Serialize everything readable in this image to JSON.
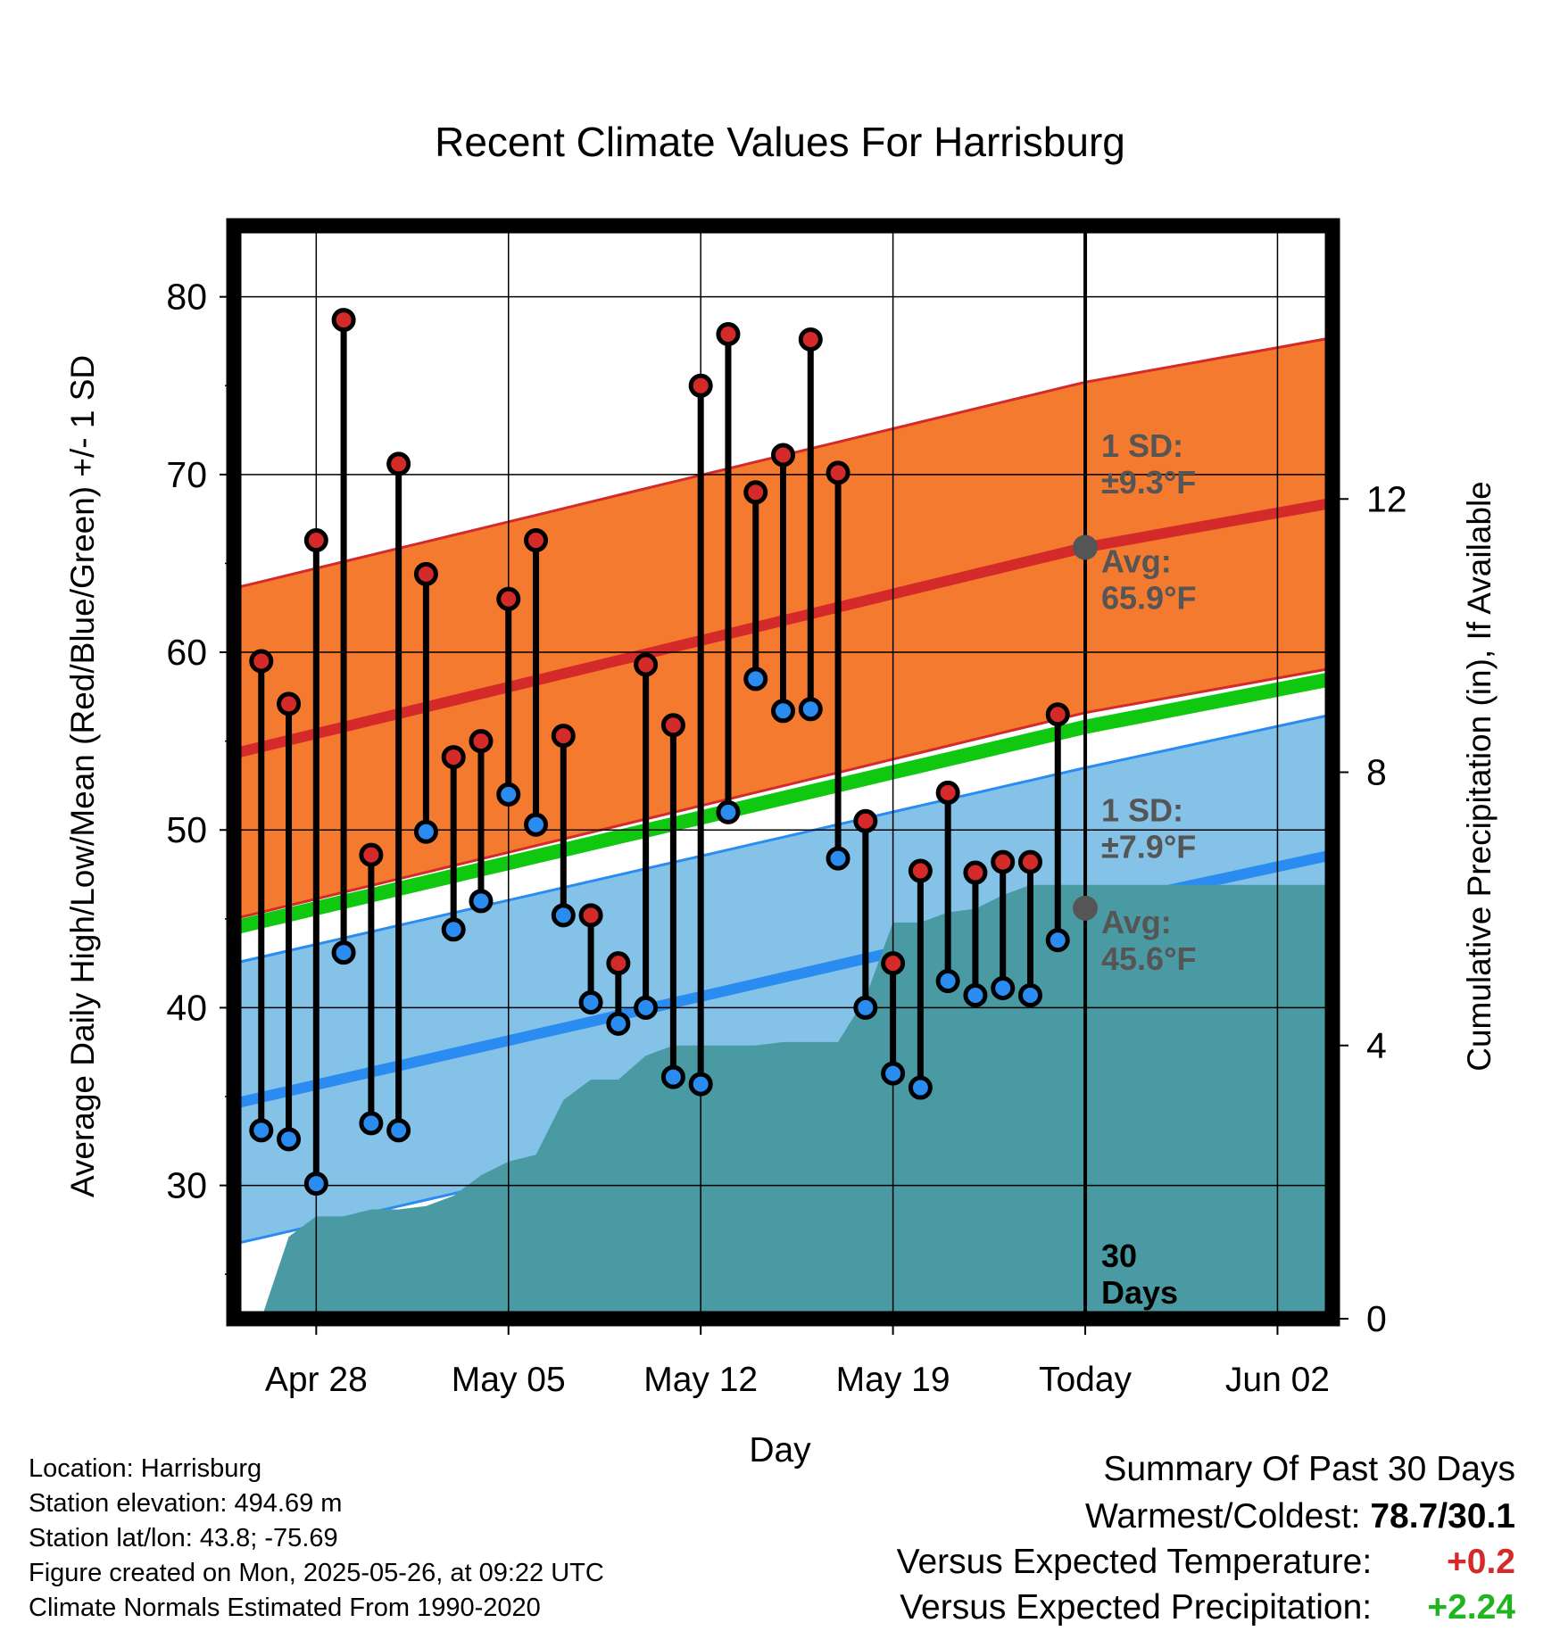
{
  "chart_data": {
    "type": "line",
    "title": "Recent Climate Values For Harrisburg",
    "xlabel": "Day",
    "ylabel": "Average Daily High/Low/Mean (Red/Blue/Green) +/- 1 SD",
    "y2label": "Cumulative Precipitation (in), If Available",
    "ylim": [
      22.5,
      84
    ],
    "y2lim": [
      0,
      16
    ],
    "yticks": [
      "30",
      "40",
      "50",
      "60",
      "70",
      "80"
    ],
    "y2ticks": [
      "0",
      "4",
      "8",
      "12"
    ],
    "xlim": [
      "Apr 25",
      "Jun 04"
    ],
    "xticks": [
      "Apr 28",
      "May 05",
      "May 12",
      "May 19",
      "Today",
      "Jun 02"
    ],
    "today": "May 26",
    "grid": true,
    "x": [
      "Apr 26",
      "Apr 27",
      "Apr 28",
      "Apr 29",
      "Apr 30",
      "May 01",
      "May 02",
      "May 03",
      "May 04",
      "May 05",
      "May 06",
      "May 07",
      "May 08",
      "May 09",
      "May 10",
      "May 11",
      "May 12",
      "May 13",
      "May 14",
      "May 15",
      "May 16",
      "May 17",
      "May 18",
      "May 19",
      "May 20",
      "May 21",
      "May 22",
      "May 23",
      "May 24",
      "May 25"
    ],
    "series": [
      {
        "name": "High",
        "color": "#d42a2a",
        "values": [
          59.5,
          57.1,
          66.3,
          78.7,
          48.6,
          70.6,
          64.4,
          54.1,
          55.0,
          63.0,
          66.3,
          55.3,
          45.2,
          42.5,
          59.3,
          55.9,
          75.0,
          77.9,
          69.0,
          71.1,
          77.6,
          70.1,
          50.5,
          42.5,
          47.7,
          52.1,
          47.6,
          48.2,
          48.2,
          56.5
        ]
      },
      {
        "name": "Low",
        "color": "#2a8cf0",
        "values": [
          33.1,
          32.6,
          30.1,
          43.1,
          33.5,
          33.1,
          49.9,
          44.4,
          46.0,
          52.0,
          50.3,
          45.2,
          40.3,
          39.1,
          40.0,
          36.1,
          35.7,
          51.0,
          58.5,
          56.7,
          56.8,
          48.4,
          40.0,
          36.3,
          35.5,
          41.5,
          40.7,
          41.1,
          40.7,
          43.8
        ]
      },
      {
        "name": "Cumulative Precipitation",
        "color": "#4a9aa4",
        "values": [
          0.0,
          1.2,
          1.5,
          1.5,
          1.6,
          1.6,
          1.65,
          1.8,
          2.1,
          2.3,
          2.4,
          3.2,
          3.5,
          3.5,
          3.85,
          4.0,
          4.0,
          4.0,
          4.0,
          4.05,
          4.05,
          4.05,
          4.7,
          5.8,
          5.8,
          5.95,
          6.0,
          6.2,
          6.35,
          6.35
        ]
      }
    ],
    "normals": {
      "x": [
        "Apr 25",
        "May 26",
        "Jun 04"
      ],
      "high_avg": [
        54.3,
        65.9,
        68.4
      ],
      "low_avg": [
        34.6,
        45.6,
        48.6
      ],
      "mean_avg": [
        44.5,
        55.8,
        58.5
      ],
      "high_sd": 9.3,
      "low_sd": 7.9,
      "high_sd_color": "#f47a30",
      "low_sd_color": "#84c2e8",
      "mean_color": "#11c811"
    },
    "precip_future_flat": 6.35,
    "annotations": {
      "high_sd": [
        "1 SD:",
        "±9.3°F"
      ],
      "high_avg": [
        "Avg:",
        "65.9°F"
      ],
      "low_sd": [
        "1 SD:",
        "±7.9°F"
      ],
      "low_avg": [
        "Avg:",
        "45.6°F"
      ],
      "days": [
        "30",
        "Days"
      ]
    }
  },
  "info": {
    "location": "Location: Harrisburg",
    "elevation": "Station elevation: 494.69 m",
    "latlon": "Station lat/lon: 43.8; -75.69",
    "created": "Figure created on Mon, 2025-05-26, at 09:22 UTC",
    "normals": "Climate Normals Estimated From 1990-2020"
  },
  "summary": {
    "heading": "Summary Of Past 30 Days",
    "warmest_label": "Warmest/Coldest:",
    "warmest_value": "78.7/30.1",
    "temp_label": "Versus Expected Temperature:",
    "temp_value": "+0.2",
    "temp_color": "#d42a2a",
    "precip_label": "Versus Expected Precipitation:",
    "precip_value": "+2.24",
    "precip_color": "#1fb51f"
  }
}
